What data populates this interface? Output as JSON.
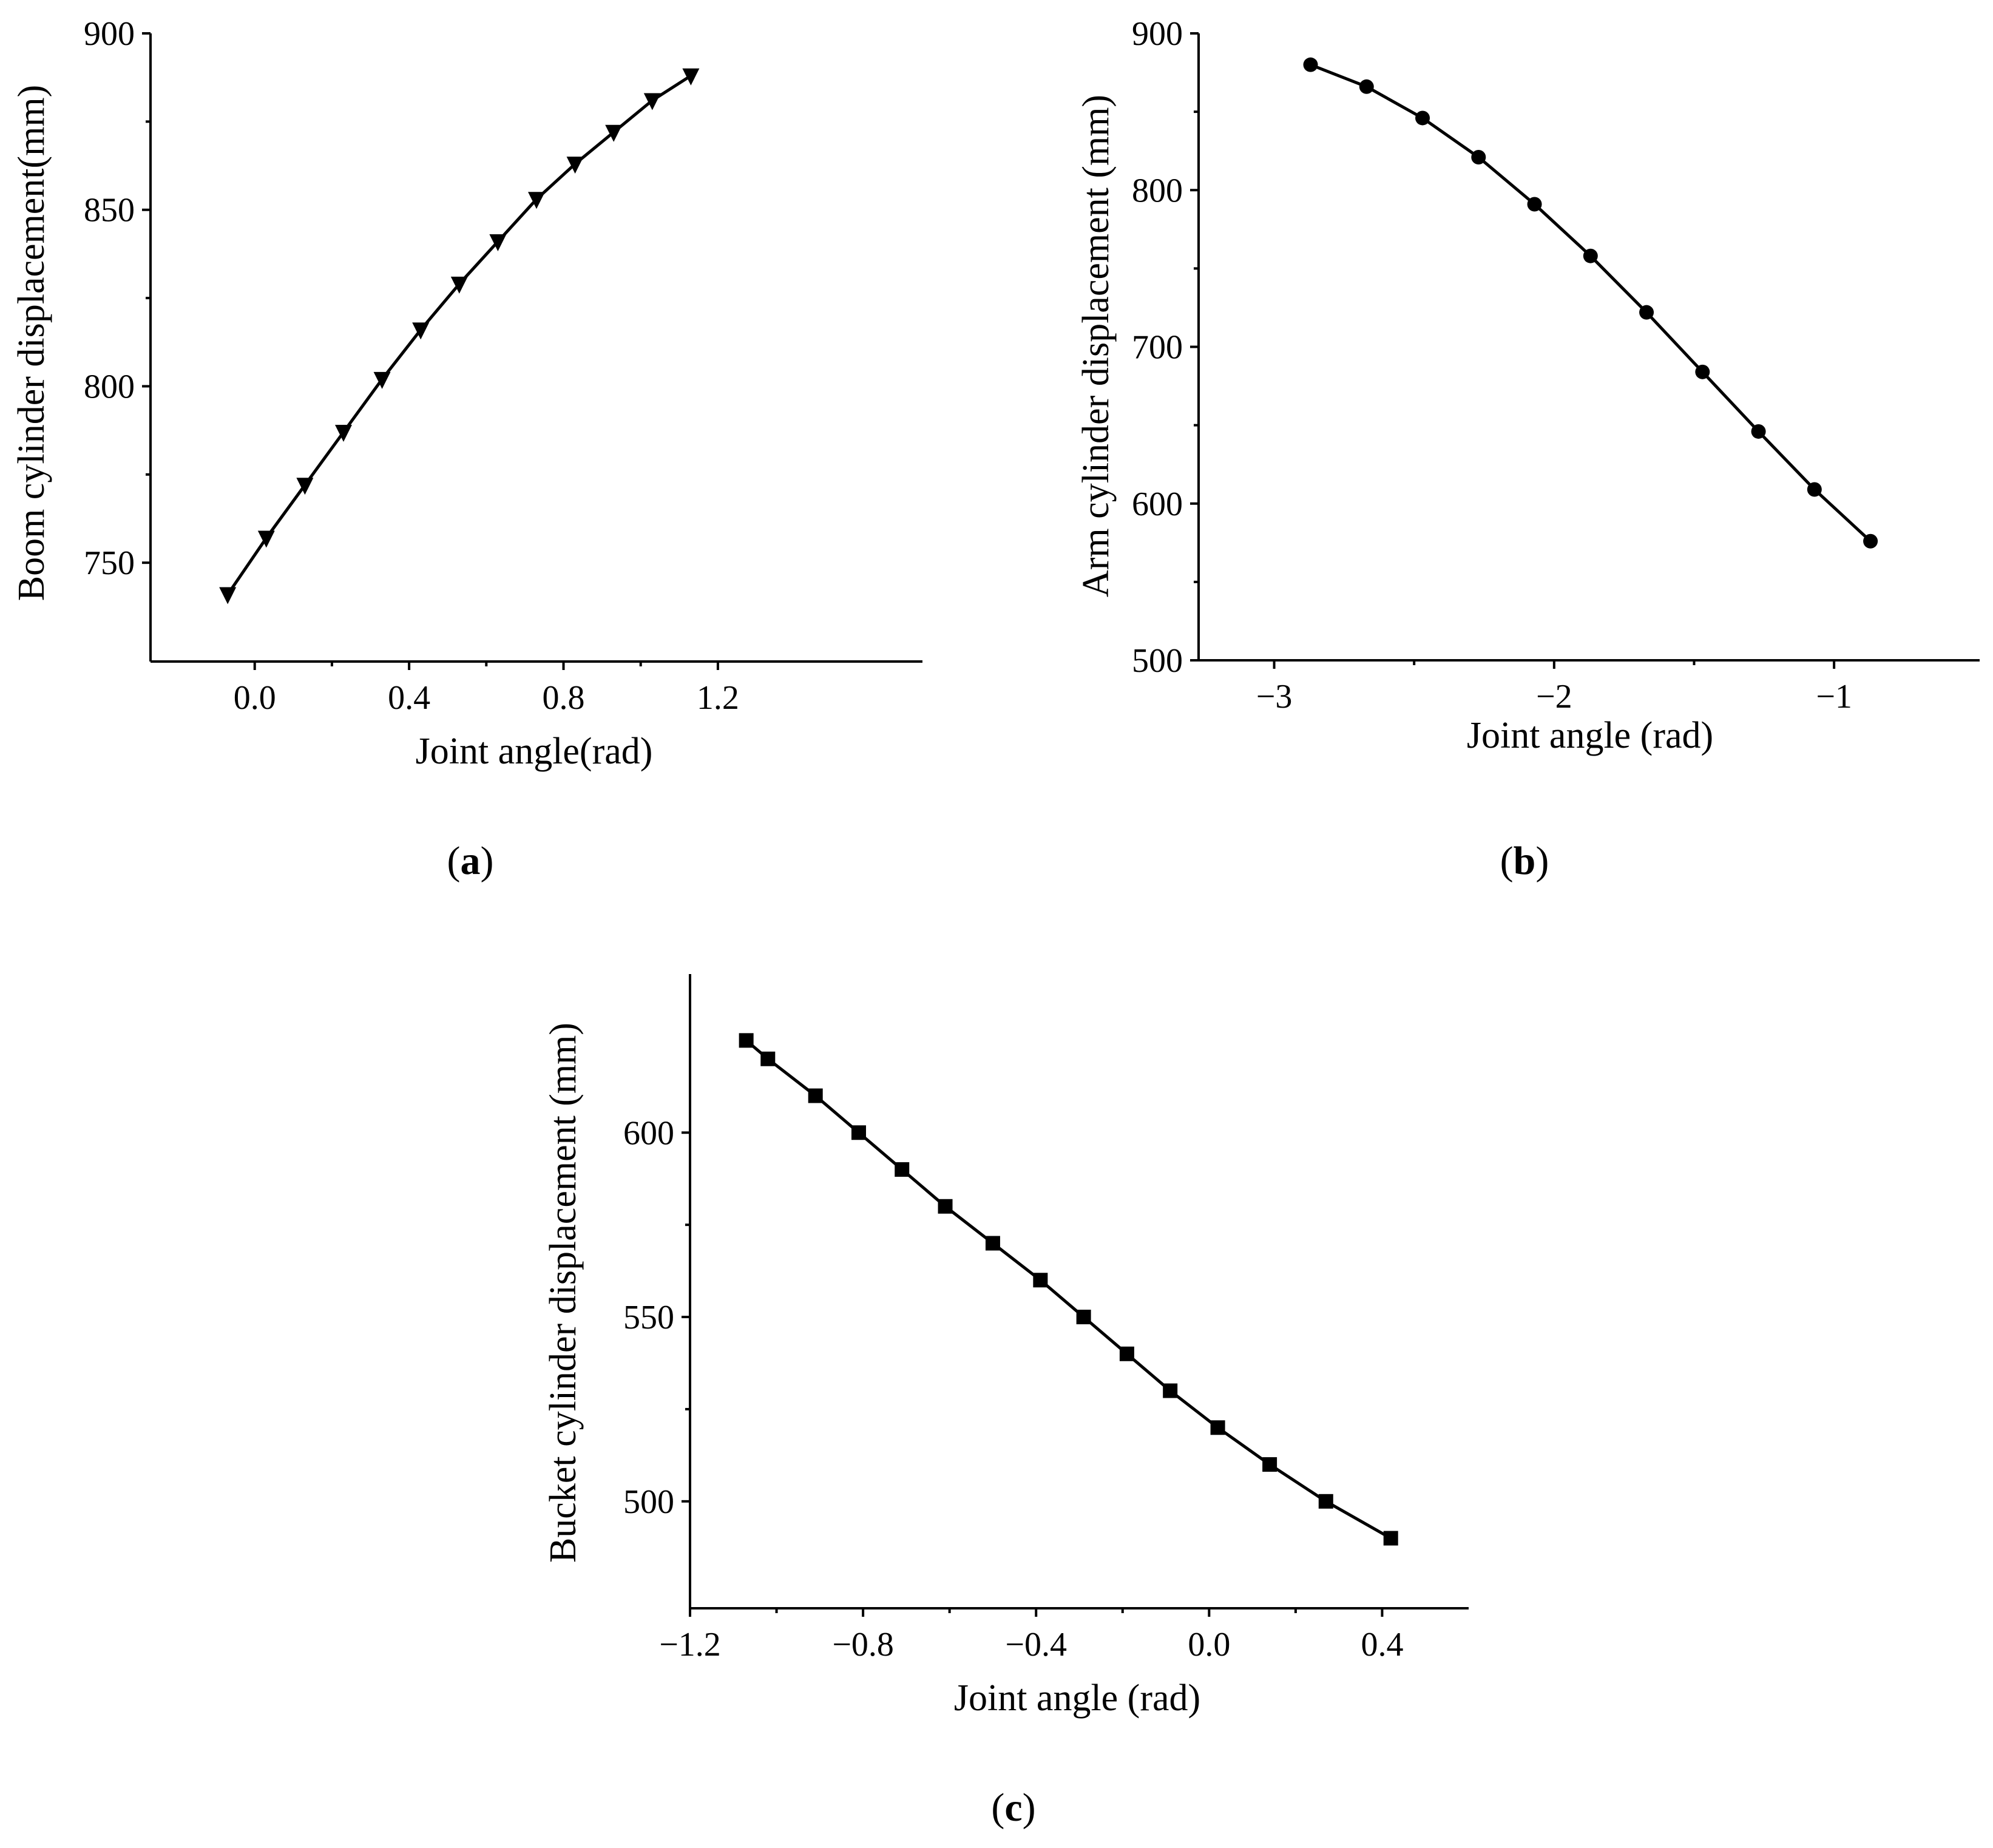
{
  "figure": {
    "background": "#ffffff",
    "foreground": "#000000"
  },
  "chart_data": [
    {
      "id": "a",
      "type": "line",
      "panel_label": "a",
      "panel_label_full": "(a)",
      "xlabel": "Joint angle(rad)",
      "ylabel": "Boom cylinder displacement(mm)",
      "xlim": [
        -0.27,
        1.73
      ],
      "ylim": [
        722,
        900
      ],
      "xticks": [
        0.0,
        0.4,
        0.8,
        1.2
      ],
      "xticklabels": [
        "0.0",
        "0.4",
        "0.8",
        "1.2"
      ],
      "yticks": [
        750,
        800,
        850,
        900
      ],
      "yticklabels": [
        "750",
        "800",
        "850",
        "900"
      ],
      "marker": "triangle-down",
      "grid": false,
      "legend": "none",
      "series": [
        {
          "x": [
            -0.07,
            0.03,
            0.13,
            0.23,
            0.33,
            0.43,
            0.53,
            0.63,
            0.73,
            0.83,
            0.93,
            1.03,
            1.13
          ],
          "y": [
            741,
            757,
            772,
            787,
            802,
            816,
            829,
            841,
            853,
            863,
            872,
            881,
            888
          ]
        }
      ]
    },
    {
      "id": "b",
      "type": "line",
      "panel_label": "b",
      "panel_label_full": "(b)",
      "xlabel": "Joint angle (rad)",
      "ylabel": "Arm cylinder displacement (mm)",
      "xlim": [
        -3.27,
        -0.48
      ],
      "ylim": [
        500,
        900
      ],
      "xticks": [
        -3,
        -2,
        -1
      ],
      "xticklabels": [
        "−3",
        "−2",
        "−1"
      ],
      "yticks": [
        500,
        600,
        700,
        800,
        900
      ],
      "yticklabels": [
        "500",
        "600",
        "700",
        "800",
        "900"
      ],
      "marker": "circle",
      "grid": false,
      "legend": "none",
      "series": [
        {
          "x": [
            -2.87,
            -2.67,
            -2.47,
            -2.27,
            -2.07,
            -1.87,
            -1.67,
            -1.47,
            -1.27,
            -1.07,
            -0.87
          ],
          "y": [
            880,
            866,
            846,
            821,
            791,
            758,
            722,
            684,
            646,
            609,
            576
          ]
        }
      ]
    },
    {
      "id": "c",
      "type": "line",
      "panel_label": "c",
      "panel_label_full": "(c)",
      "xlabel": "Joint angle (rad)",
      "ylabel": "Bucket cylinder displacement (mm)",
      "xlim": [
        -1.2,
        0.6
      ],
      "ylim": [
        471,
        643
      ],
      "xticks": [
        -1.2,
        -0.8,
        -0.4,
        0.0,
        0.4
      ],
      "xticklabels": [
        "−1.2",
        "−0.8",
        "−0.4",
        "0.0",
        "0.4"
      ],
      "yticks": [
        500,
        550,
        600
      ],
      "yticklabels": [
        "500",
        "550",
        "600"
      ],
      "marker": "square",
      "grid": false,
      "legend": "none",
      "series": [
        {
          "x": [
            -1.07,
            -1.02,
            -0.91,
            -0.81,
            -0.71,
            -0.61,
            -0.5,
            -0.39,
            -0.29,
            -0.19,
            -0.09,
            0.02,
            0.14,
            0.27,
            0.42
          ],
          "y": [
            625,
            620,
            610,
            600,
            590,
            580,
            570,
            560,
            550,
            540,
            530,
            520,
            510,
            500,
            490
          ]
        }
      ]
    }
  ]
}
